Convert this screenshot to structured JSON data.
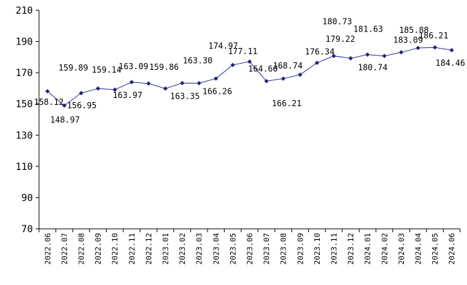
{
  "chart_data": {
    "type": "line",
    "title": "",
    "xlabel": "",
    "ylabel": "",
    "ylim": [
      70,
      210
    ],
    "yticks": [
      70,
      90,
      110,
      130,
      150,
      170,
      190,
      210
    ],
    "grid": false,
    "legend": "none",
    "categories": [
      "2022.06",
      "2022.07",
      "2022.08",
      "2022.09",
      "2022.10",
      "2022.11",
      "2022.12",
      "2023.01",
      "2023.02",
      "2023.03",
      "2023.04",
      "2023.05",
      "2023.06",
      "2023.07",
      "2023.08",
      "2023.09",
      "2023.10",
      "2023.11",
      "2023.12",
      "2024.01",
      "2024.02",
      "2024.03",
      "2024.04",
      "2024.05",
      "2024.06"
    ],
    "series": [
      {
        "values": [
          158.12,
          148.97,
          156.95,
          159.89,
          159.14,
          163.97,
          163.09,
          159.86,
          163.35,
          163.3,
          166.26,
          174.97,
          177.11,
          164.6,
          166.21,
          168.74,
          176.34,
          180.73,
          179.22,
          181.63,
          180.74,
          183.09,
          185.88,
          186.21,
          184.46
        ],
        "labels": [
          "158.12",
          "148.97",
          "156.95",
          "159.89",
          "159.14",
          "163.97",
          "163.09",
          "159.86",
          "163.35",
          "163.30",
          "166.26",
          "174.97",
          "177.11",
          "164.60",
          "166.21",
          "168.74",
          "176.34",
          "180.73",
          "179.22",
          "181.63",
          "180.74",
          "183.09",
          "185.88",
          "186.21",
          "184.46"
        ]
      }
    ],
    "colors": {
      "line": "#2e3192",
      "marker": "#1f1f7a",
      "axis": "#000000"
    }
  }
}
